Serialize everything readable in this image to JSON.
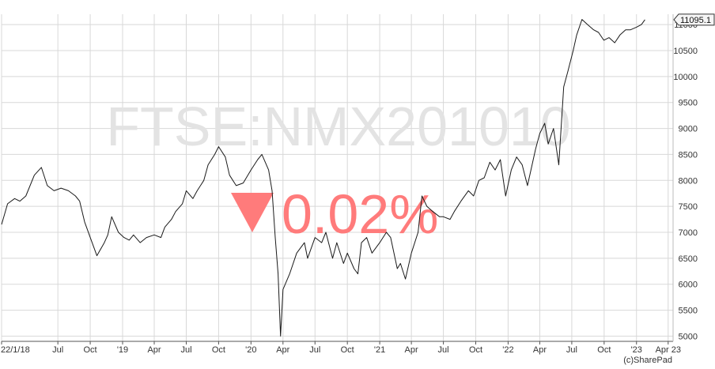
{
  "chart_data": {
    "type": "line",
    "watermark": "FTSE:NMX201010",
    "change_text": "0.02%",
    "change_direction": "down",
    "current_value_label": "11095.1",
    "copyright": "(c)SharePad",
    "ylim": [
      4900,
      11200
    ],
    "y_ticks": [
      5000,
      5500,
      6000,
      6500,
      7000,
      7500,
      8000,
      8500,
      9000,
      9500,
      10000,
      10500,
      11000
    ],
    "y_tick_labels": [
      "5000",
      "5500",
      "6000",
      "6500",
      "7000",
      "7500",
      "8000",
      "8500",
      "9000",
      "9500",
      "10000",
      "10500",
      "11000"
    ],
    "xlim": [
      "2018-01-22",
      "2023-04-15"
    ],
    "x_ticks": [
      "2018-01-22",
      "2018-07-01",
      "2018-10-01",
      "2019-01-01",
      "2019-04-01",
      "2019-07-01",
      "2019-10-01",
      "2020-01-01",
      "2020-04-01",
      "2020-07-01",
      "2020-10-01",
      "2021-01-01",
      "2021-04-01",
      "2021-07-01",
      "2021-10-01",
      "2022-01-01",
      "2022-04-01",
      "2022-07-01",
      "2022-10-01",
      "2023-01-01",
      "2023-04-01"
    ],
    "x_tick_labels": [
      "22/1/18",
      "Jul",
      "Oct",
      "'19",
      "Apr",
      "Jul",
      "Oct",
      "'20",
      "Apr",
      "Jul",
      "Oct",
      "'21",
      "Apr",
      "Jul",
      "Oct",
      "'22",
      "Apr",
      "Jul",
      "Oct",
      "'23",
      "Apr 23"
    ],
    "grid": true,
    "colors": {
      "line": "#1a1a1a",
      "grid": "#d8d8d8",
      "watermark": "#e3e3e3",
      "change": "#ff7b7b",
      "axis_text": "#333333"
    },
    "series": [
      {
        "x": [
          "2018-01-22",
          "2018-02-08",
          "2018-02-28",
          "2018-03-15",
          "2018-04-01",
          "2018-04-25",
          "2018-05-15",
          "2018-06-01",
          "2018-06-20",
          "2018-07-10",
          "2018-07-31",
          "2018-08-20",
          "2018-09-01",
          "2018-09-15",
          "2018-10-01",
          "2018-10-20",
          "2018-11-10",
          "2018-11-20",
          "2018-12-01",
          "2018-12-20",
          "2019-01-05",
          "2019-01-20",
          "2019-02-01",
          "2019-02-20",
          "2019-03-10",
          "2019-04-01",
          "2019-04-20",
          "2019-05-01",
          "2019-05-20",
          "2019-06-01",
          "2019-06-20",
          "2019-07-01",
          "2019-07-20",
          "2019-08-01",
          "2019-08-20",
          "2019-09-01",
          "2019-09-20",
          "2019-10-01",
          "2019-10-20",
          "2019-11-01",
          "2019-11-20",
          "2019-12-10",
          "2020-01-01",
          "2020-01-20",
          "2020-02-01",
          "2020-02-20",
          "2020-03-01",
          "2020-03-10",
          "2020-03-18",
          "2020-03-25",
          "2020-04-01",
          "2020-04-20",
          "2020-05-10",
          "2020-06-01",
          "2020-06-10",
          "2020-07-01",
          "2020-07-20",
          "2020-08-01",
          "2020-08-20",
          "2020-09-01",
          "2020-09-20",
          "2020-10-01",
          "2020-10-20",
          "2020-10-31",
          "2020-11-10",
          "2020-11-25",
          "2020-12-10",
          "2021-01-01",
          "2021-01-20",
          "2021-02-01",
          "2021-02-20",
          "2021-03-01",
          "2021-03-15",
          "2021-04-01",
          "2021-04-20",
          "2021-05-01",
          "2021-05-15",
          "2021-06-01",
          "2021-06-20",
          "2021-07-01",
          "2021-07-20",
          "2021-08-01",
          "2021-08-20",
          "2021-09-10",
          "2021-09-25",
          "2021-10-10",
          "2021-10-25",
          "2021-11-10",
          "2021-11-25",
          "2021-12-10",
          "2021-12-25",
          "2022-01-10",
          "2022-01-25",
          "2022-02-10",
          "2022-02-25",
          "2022-03-07",
          "2022-03-20",
          "2022-04-01",
          "2022-04-15",
          "2022-04-25",
          "2022-05-10",
          "2022-05-25",
          "2022-06-08",
          "2022-06-20",
          "2022-07-05",
          "2022-07-15",
          "2022-07-30",
          "2022-08-15",
          "2022-09-01",
          "2022-09-15",
          "2022-09-30",
          "2022-10-15",
          "2022-10-31",
          "2022-11-15",
          "2022-12-01",
          "2022-12-15",
          "2023-01-01",
          "2023-01-15",
          "2023-01-25"
        ],
        "values": [
          7150,
          7550,
          7650,
          7600,
          7700,
          8100,
          8250,
          7900,
          7800,
          7850,
          7800,
          7700,
          7600,
          7200,
          6900,
          6550,
          6800,
          6950,
          7300,
          7000,
          6900,
          6850,
          6950,
          6800,
          6900,
          6950,
          6900,
          7100,
          7250,
          7400,
          7550,
          7800,
          7650,
          7800,
          8000,
          8300,
          8500,
          8650,
          8450,
          8100,
          7900,
          7950,
          8200,
          8400,
          8500,
          8200,
          7800,
          6900,
          6200,
          5000,
          5900,
          6200,
          6600,
          6800,
          6500,
          6900,
          6800,
          7000,
          6500,
          6800,
          6400,
          6600,
          6300,
          6200,
          6800,
          6900,
          6600,
          6800,
          7000,
          6900,
          6300,
          6400,
          6100,
          6600,
          7000,
          7700,
          7500,
          7400,
          7300,
          7300,
          7250,
          7400,
          7600,
          7800,
          7700,
          8000,
          8050,
          8350,
          8200,
          8400,
          7700,
          8200,
          8450,
          8300,
          7900,
          8200,
          8600,
          8900,
          9100,
          8700,
          9000,
          8300,
          9800,
          10100,
          10500,
          10800,
          11100,
          11000,
          10900,
          10850,
          10700,
          10750,
          10650,
          10800,
          10900,
          10900,
          10950,
          11000,
          11095.1
        ]
      }
    ]
  }
}
